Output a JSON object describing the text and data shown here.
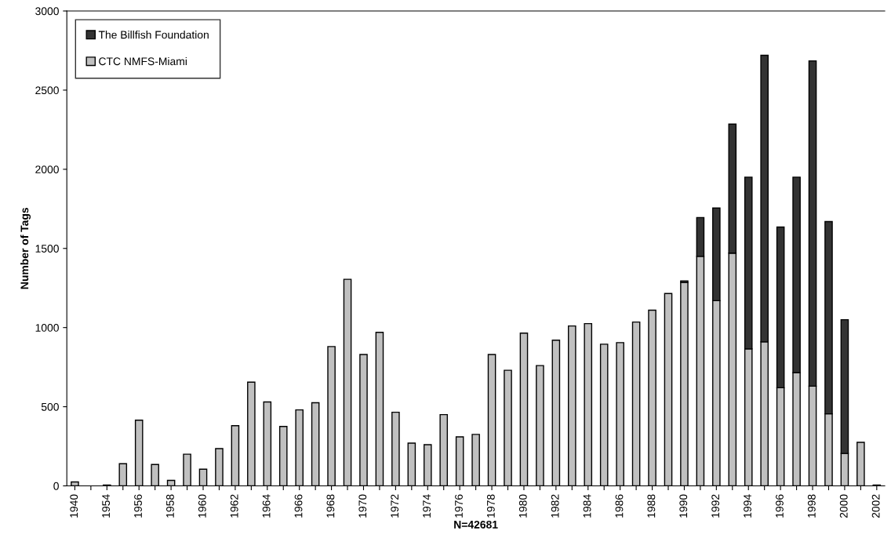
{
  "chart_data": {
    "type": "bar",
    "stacked": true,
    "xlabel": "N=42681",
    "ylabel": "Number of Tags",
    "categories": [
      "1940",
      null,
      "1954",
      null,
      "1956",
      null,
      "1958",
      null,
      "1960",
      null,
      "1962",
      null,
      "1964",
      null,
      "1966",
      null,
      "1968",
      null,
      "1970",
      null,
      "1972",
      null,
      "1974",
      null,
      "1976",
      null,
      "1978",
      null,
      "1980",
      null,
      "1982",
      null,
      "1984",
      null,
      "1986",
      null,
      "1988",
      null,
      "1990",
      null,
      "1992",
      null,
      "1994",
      null,
      "1996",
      null,
      "1998",
      null,
      "2000",
      null,
      "2002"
    ],
    "series": [
      {
        "name": "CTC NMFS-Miami",
        "color": "#c0c0c0",
        "values": [
          25,
          null,
          5,
          140,
          415,
          135,
          35,
          200,
          105,
          235,
          380,
          655,
          530,
          375,
          480,
          525,
          880,
          1305,
          830,
          970,
          465,
          270,
          260,
          450,
          310,
          325,
          830,
          730,
          965,
          760,
          920,
          1010,
          1025,
          895,
          905,
          1035,
          1110,
          1215,
          1285,
          1450,
          1170,
          1470,
          865,
          910,
          620,
          715,
          630,
          455,
          205,
          275,
          5
        ]
      },
      {
        "name": "The Billfish Foundation",
        "color": "#333333",
        "values": [
          null,
          null,
          null,
          null,
          null,
          null,
          null,
          null,
          null,
          null,
          null,
          null,
          null,
          null,
          null,
          null,
          null,
          null,
          null,
          null,
          null,
          null,
          null,
          null,
          null,
          null,
          null,
          null,
          null,
          null,
          null,
          null,
          null,
          null,
          null,
          null,
          null,
          null,
          10,
          245,
          585,
          815,
          1085,
          1810,
          1015,
          1235,
          2055,
          1215,
          845,
          null,
          null
        ]
      }
    ],
    "ylim": [
      0,
      3000
    ],
    "yticks": [
      0,
      500,
      1000,
      1500,
      2000,
      2500,
      3000
    ],
    "grid": false,
    "legend": "top left"
  }
}
